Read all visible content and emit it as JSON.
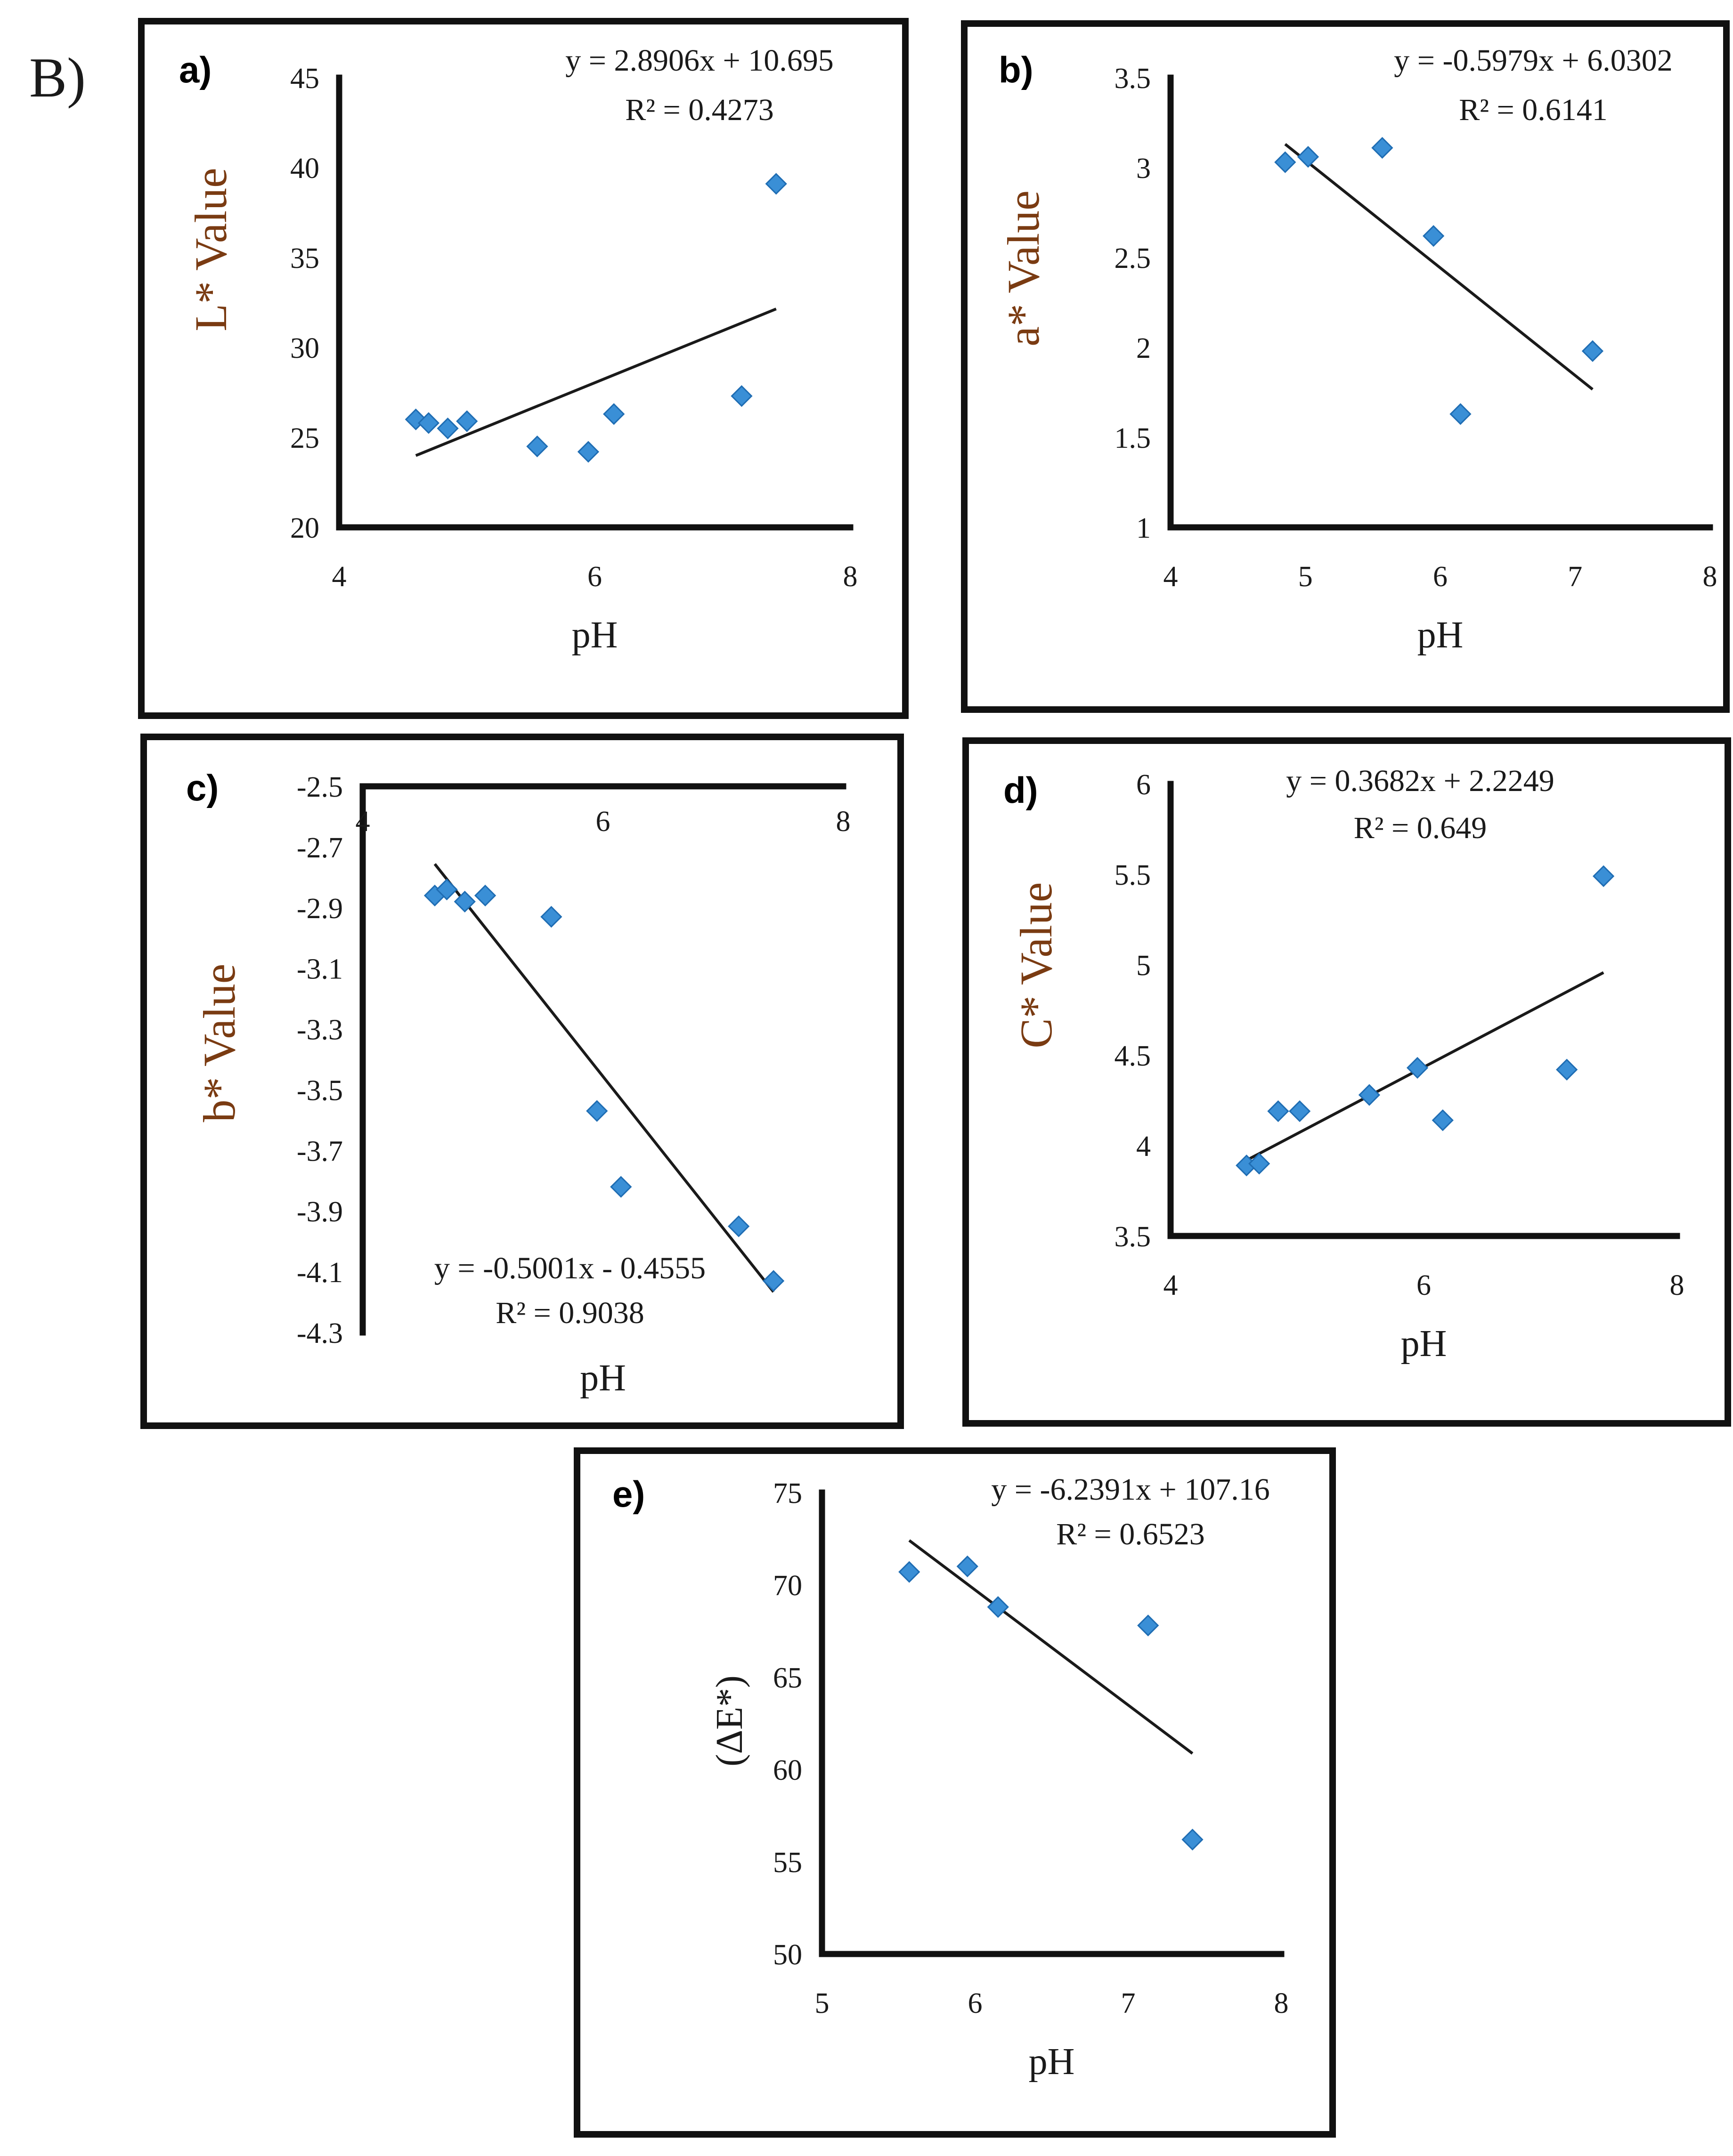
{
  "figure_label": "B)",
  "colors": {
    "marker": "#3a8fd6",
    "marker_edge": "#1f6db3",
    "trendline": "#1a1a1a",
    "frame": "#111111"
  },
  "chart_data": [
    {
      "id": "a",
      "type": "scatter",
      "panel_label": "a)",
      "xlabel": "pH",
      "ylabel": "L* Value",
      "xlim": [
        4,
        8
      ],
      "ylim": [
        20,
        45
      ],
      "xticks": [
        4,
        6,
        8
      ],
      "yticks": [
        20,
        25,
        30,
        35,
        40,
        45
      ],
      "x_axis_position": "bottom",
      "points": [
        [
          4.6,
          26.0
        ],
        [
          4.7,
          25.8
        ],
        [
          4.85,
          25.5
        ],
        [
          5.0,
          25.9
        ],
        [
          5.55,
          24.5
        ],
        [
          5.95,
          24.2
        ],
        [
          6.15,
          26.3
        ],
        [
          7.15,
          27.3
        ],
        [
          7.42,
          39.1
        ]
      ],
      "trendline": {
        "slope": 2.8906,
        "intercept": 10.695,
        "x_range": [
          4.6,
          7.42
        ]
      },
      "equation": "y = 2.8906x + 10.695",
      "r_squared": "R² = 0.4273"
    },
    {
      "id": "b",
      "type": "scatter",
      "panel_label": "b)",
      "xlabel": "pH",
      "ylabel": "a* Value",
      "xlim": [
        4,
        8
      ],
      "ylim": [
        1,
        3.5
      ],
      "xticks": [
        4,
        5,
        6,
        7,
        8
      ],
      "yticks": [
        1,
        1.5,
        2,
        2.5,
        3,
        3.5
      ],
      "x_axis_position": "bottom",
      "points": [
        [
          4.85,
          3.03
        ],
        [
          5.02,
          3.06
        ],
        [
          5.57,
          3.11
        ],
        [
          5.95,
          2.62
        ],
        [
          6.15,
          1.63
        ],
        [
          7.13,
          1.98
        ]
      ],
      "trendline": {
        "slope": -0.5979,
        "intercept": 6.0302,
        "x_range": [
          4.85,
          7.13
        ]
      },
      "equation": "y = -0.5979x + 6.0302",
      "r_squared": "R² = 0.6141"
    },
    {
      "id": "c",
      "type": "scatter",
      "panel_label": "c)",
      "xlabel": "pH",
      "ylabel": "b* Value",
      "xlim": [
        4,
        8
      ],
      "ylim": [
        -4.3,
        -2.5
      ],
      "xticks": [
        4,
        6,
        8
      ],
      "xtick_labels": [
        "4",
        "6",
        "8"
      ],
      "yticks": [
        -2.5,
        -2.7,
        -2.9,
        -3.1,
        -3.3,
        -3.5,
        -3.7,
        -3.9,
        -4.1,
        -4.3
      ],
      "x_axis_position": "top",
      "points": [
        [
          4.6,
          -2.86
        ],
        [
          4.7,
          -2.84
        ],
        [
          4.85,
          -2.88
        ],
        [
          5.02,
          -2.86
        ],
        [
          5.57,
          -2.93
        ],
        [
          5.95,
          -3.57
        ],
        [
          6.15,
          -3.82
        ],
        [
          7.13,
          -3.95
        ],
        [
          7.42,
          -4.13
        ]
      ],
      "trendline": {
        "slope": -0.5001,
        "intercept": -0.4555,
        "x_range": [
          4.6,
          7.42
        ]
      },
      "equation": "y = -0.5001x - 0.4555",
      "r_squared": "R² = 0.9038"
    },
    {
      "id": "d",
      "type": "scatter",
      "panel_label": "d)",
      "xlabel": "pH",
      "ylabel": "C* Value",
      "xlim": [
        4,
        8
      ],
      "ylim": [
        3.5,
        6
      ],
      "xticks": [
        4,
        6,
        8
      ],
      "yticks": [
        3.5,
        4,
        4.5,
        5,
        5.5,
        6
      ],
      "x_axis_position": "bottom",
      "points": [
        [
          4.6,
          3.89
        ],
        [
          4.7,
          3.9
        ],
        [
          4.85,
          4.19
        ],
        [
          5.02,
          4.19
        ],
        [
          5.57,
          4.28
        ],
        [
          5.95,
          4.43
        ],
        [
          6.15,
          4.14
        ],
        [
          7.13,
          4.42
        ],
        [
          7.42,
          5.49
        ]
      ],
      "trendline": {
        "slope": 0.3682,
        "intercept": 2.2249,
        "x_range": [
          4.6,
          7.42
        ]
      },
      "equation": "y = 0.3682x + 2.2249",
      "r_squared": "R² = 0.649"
    },
    {
      "id": "e",
      "type": "scatter",
      "panel_label": "e)",
      "xlabel": "pH",
      "ylabel": "(ΔE*)",
      "xlim": [
        5,
        8
      ],
      "ylim": [
        50,
        75
      ],
      "xticks": [
        5,
        6,
        7,
        8
      ],
      "yticks": [
        50,
        55,
        60,
        65,
        70,
        75
      ],
      "x_axis_position": "bottom",
      "points": [
        [
          5.57,
          70.7
        ],
        [
          5.95,
          71.0
        ],
        [
          6.15,
          68.8
        ],
        [
          7.13,
          67.8
        ],
        [
          7.42,
          56.2
        ]
      ],
      "trendline": {
        "slope": -6.2391,
        "intercept": 107.16,
        "x_range": [
          5.57,
          7.42
        ]
      },
      "equation": "y = -6.2391x + 107.16",
      "r_squared": "R² = 0.6523"
    }
  ]
}
